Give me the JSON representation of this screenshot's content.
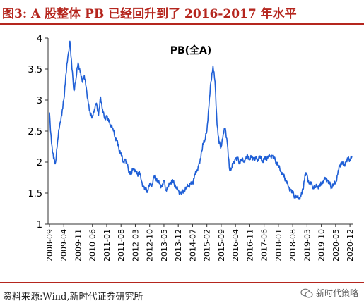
{
  "title": "图3:  A 股整体 PB 已经回升到了 2016-2017 年水平",
  "source": "资料来源:Wind,新时代证券研究所",
  "watermark": "新时代策略",
  "chart_data": {
    "type": "line",
    "title": "PB(全A)",
    "xlabel": "",
    "ylabel": "",
    "ylim": [
      1,
      4
    ],
    "yticks": [
      1,
      1.5,
      2,
      2.5,
      3,
      3.5,
      4
    ],
    "xticks": [
      "2008-09",
      "2009-04",
      "2009-11",
      "2010-06",
      "2011-01",
      "2011-08",
      "2012-03",
      "2012-10",
      "2013-05",
      "2013-12",
      "2014-07",
      "2015-02",
      "2015-09",
      "2016-04",
      "2016-11",
      "2017-06",
      "2018-01",
      "2018-08",
      "2019-03",
      "2019-10",
      "2020-05",
      "2020-12"
    ],
    "grid": false,
    "line_color": "#1f5fd6",
    "series": [
      {
        "x": [
          "2008-09",
          "2008-10",
          "2008-11",
          "2008-12",
          "2009-01",
          "2009-02",
          "2009-03",
          "2009-04",
          "2009-05",
          "2009-06",
          "2009-07",
          "2009-08",
          "2009-09",
          "2009-10",
          "2009-11",
          "2009-12",
          "2010-01",
          "2010-02",
          "2010-03",
          "2010-04",
          "2010-05",
          "2010-06",
          "2010-07",
          "2010-08",
          "2010-09",
          "2010-10",
          "2010-11",
          "2010-12",
          "2011-01",
          "2011-02",
          "2011-03",
          "2011-04",
          "2011-05",
          "2011-06",
          "2011-07",
          "2011-08",
          "2011-09",
          "2011-10",
          "2011-11",
          "2011-12",
          "2012-01",
          "2012-02",
          "2012-03",
          "2012-04",
          "2012-05",
          "2012-06",
          "2012-07",
          "2012-08",
          "2012-09",
          "2012-10",
          "2012-11",
          "2012-12",
          "2013-01",
          "2013-02",
          "2013-03",
          "2013-04",
          "2013-05",
          "2013-06",
          "2013-07",
          "2013-08",
          "2013-09",
          "2013-10",
          "2013-11",
          "2013-12",
          "2014-01",
          "2014-02",
          "2014-03",
          "2014-04",
          "2014-05",
          "2014-06",
          "2014-07",
          "2014-08",
          "2014-09",
          "2014-10",
          "2014-11",
          "2014-12",
          "2015-01",
          "2015-02",
          "2015-03",
          "2015-04",
          "2015-05",
          "2015-06",
          "2015-07",
          "2015-08",
          "2015-09",
          "2015-10",
          "2015-11",
          "2015-12",
          "2016-01",
          "2016-02",
          "2016-03",
          "2016-04",
          "2016-05",
          "2016-06",
          "2016-07",
          "2016-08",
          "2016-09",
          "2016-10",
          "2016-11",
          "2016-12",
          "2017-01",
          "2017-02",
          "2017-03",
          "2017-04",
          "2017-05",
          "2017-06",
          "2017-07",
          "2017-08",
          "2017-09",
          "2017-10",
          "2017-11",
          "2017-12",
          "2018-01",
          "2018-02",
          "2018-03",
          "2018-04",
          "2018-05",
          "2018-06",
          "2018-07",
          "2018-08",
          "2018-09",
          "2018-10",
          "2018-11",
          "2018-12",
          "2019-01",
          "2019-02",
          "2019-03",
          "2019-04",
          "2019-05",
          "2019-06",
          "2019-07",
          "2019-08",
          "2019-09",
          "2019-10",
          "2019-11",
          "2019-12",
          "2020-01",
          "2020-02",
          "2020-03",
          "2020-04",
          "2020-05",
          "2020-06",
          "2020-07",
          "2020-08",
          "2020-09",
          "2020-10",
          "2020-11",
          "2020-12",
          "2021-01"
        ],
        "values": [
          2.8,
          2.3,
          2.05,
          2.0,
          2.35,
          2.6,
          2.75,
          3.0,
          3.4,
          3.7,
          3.95,
          3.5,
          3.15,
          3.35,
          3.6,
          3.45,
          3.3,
          3.4,
          3.2,
          2.95,
          2.75,
          2.75,
          2.85,
          2.95,
          2.75,
          3.05,
          2.85,
          2.7,
          2.75,
          2.65,
          2.6,
          2.55,
          2.4,
          2.35,
          2.2,
          2.15,
          2.0,
          2.05,
          1.95,
          1.85,
          1.8,
          1.9,
          1.85,
          1.8,
          1.85,
          1.7,
          1.6,
          1.55,
          1.55,
          1.65,
          1.6,
          1.75,
          1.75,
          1.7,
          1.65,
          1.6,
          1.7,
          1.55,
          1.6,
          1.65,
          1.7,
          1.65,
          1.6,
          1.55,
          1.5,
          1.5,
          1.55,
          1.6,
          1.6,
          1.65,
          1.65,
          1.8,
          1.85,
          1.95,
          2.05,
          2.3,
          2.35,
          2.5,
          2.9,
          3.3,
          3.55,
          3.3,
          2.6,
          2.3,
          2.25,
          2.45,
          2.55,
          2.3,
          1.9,
          1.9,
          2.0,
          2.05,
          2.05,
          2.0,
          2.05,
          2.0,
          2.05,
          2.1,
          2.05,
          2.1,
          2.05,
          2.05,
          2.05,
          2.1,
          2.0,
          2.05,
          2.05,
          2.1,
          2.1,
          2.1,
          2.05,
          2.0,
          1.95,
          1.85,
          1.8,
          1.75,
          1.7,
          1.6,
          1.55,
          1.5,
          1.45,
          1.45,
          1.4,
          1.45,
          1.55,
          1.8,
          1.8,
          1.65,
          1.65,
          1.6,
          1.6,
          1.6,
          1.6,
          1.65,
          1.7,
          1.75,
          1.7,
          1.65,
          1.6,
          1.65,
          1.65,
          1.8,
          1.95,
          2.0,
          1.95,
          2.0,
          2.05,
          2.05,
          2.1
        ]
      }
    ]
  }
}
